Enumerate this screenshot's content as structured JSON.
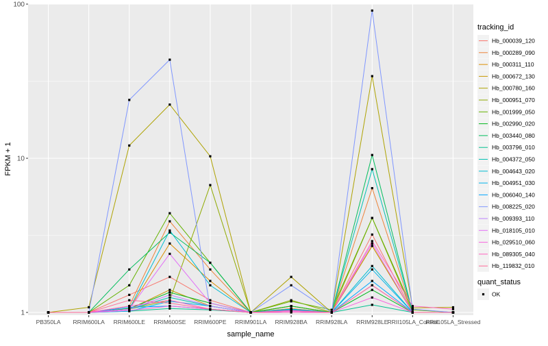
{
  "chart_data": {
    "type": "line",
    "title": "",
    "xlabel": "sample_name",
    "ylabel": "FPKM + 1",
    "y_scale": "log10",
    "ylim": [
      0.96,
      100
    ],
    "y_ticks": [
      {
        "value": 1,
        "label": "1"
      },
      {
        "value": 10,
        "label": "10"
      },
      {
        "value": 100,
        "label": "100"
      }
    ],
    "grid": true,
    "legend_position": "right",
    "categories": [
      "PB350LA",
      "RRIM600LA",
      "RRIM600LE",
      "RRIM600SE",
      "RRIM600PE",
      "RRIM901LA",
      "RRIM928BA",
      "RRIM928LA",
      "RRIM928LE",
      "RRII105LA_Control",
      "RRII105LA_Stressed"
    ],
    "color_legend": {
      "title": "tracking_id"
    },
    "shape_legend": {
      "title": "quant_status",
      "items": [
        {
          "label": "OK",
          "color": "#000000",
          "shape": "square"
        }
      ]
    },
    "series": [
      {
        "name": "Hb_000039_120",
        "color": "#F8766D",
        "values": [
          1.0,
          1.0,
          1.3,
          1.7,
          1.2,
          1.0,
          1.04,
          1.0,
          3.2,
          1.0,
          1.0
        ]
      },
      {
        "name": "Hb_000289_090",
        "color": "#EC8239",
        "values": [
          1.0,
          1.0,
          1.1,
          3.9,
          1.9,
          1.0,
          1.06,
          1.0,
          6.4,
          1.0,
          1.0
        ]
      },
      {
        "name": "Hb_000311_110",
        "color": "#DB8E00",
        "values": [
          1.0,
          1.0,
          1.05,
          2.8,
          1.6,
          1.0,
          1.1,
          1.0,
          2.7,
          1.0,
          1.0
        ]
      },
      {
        "name": "Hb_000672_130",
        "color": "#C79800",
        "values": [
          1.0,
          1.0,
          1.05,
          1.4,
          1.1,
          1.0,
          1.1,
          1.0,
          2.7,
          1.0,
          1.0
        ]
      },
      {
        "name": "Hb_000780_160",
        "color": "#AEA200",
        "values": [
          1.0,
          1.08,
          12.1,
          22.3,
          10.3,
          1.0,
          1.7,
          1.0,
          34.1,
          1.07,
          1.08
        ]
      },
      {
        "name": "Hb_000951_070",
        "color": "#8FAA00",
        "values": [
          1.0,
          1.0,
          1.05,
          1.2,
          6.7,
          1.0,
          1.2,
          1.0,
          4.1,
          1.0,
          1.0
        ]
      },
      {
        "name": "Hb_001999_050",
        "color": "#64B200",
        "values": [
          1.0,
          1.0,
          1.5,
          4.4,
          2.1,
          1.0,
          1.18,
          1.04,
          4.1,
          1.04,
          1.0
        ]
      },
      {
        "name": "Hb_002990_020",
        "color": "#00B81B",
        "values": [
          1.0,
          1.0,
          1.06,
          1.35,
          1.15,
          1.0,
          1.1,
          1.0,
          1.4,
          1.0,
          1.0
        ]
      },
      {
        "name": "Hb_003440_080",
        "color": "#00BD5C",
        "values": [
          1.0,
          1.0,
          1.9,
          3.3,
          2.1,
          1.0,
          1.05,
          1.0,
          10.5,
          1.0,
          1.0
        ]
      },
      {
        "name": "Hb_003796_010",
        "color": "#00C08E",
        "values": [
          1.0,
          1.0,
          1.02,
          1.06,
          1.04,
          1.0,
          1.02,
          1.0,
          1.12,
          1.0,
          1.0
        ]
      },
      {
        "name": "Hb_004372_050",
        "color": "#00C1B2",
        "values": [
          1.0,
          1.0,
          1.05,
          1.25,
          1.1,
          1.0,
          1.05,
          1.0,
          8.5,
          1.0,
          1.0
        ]
      },
      {
        "name": "Hb_004643_020",
        "color": "#00BCD1",
        "values": [
          1.0,
          1.0,
          1.05,
          3.4,
          1.5,
          1.0,
          1.05,
          1.0,
          2.0,
          1.0,
          1.0
        ]
      },
      {
        "name": "Hb_004951_030",
        "color": "#00B3EB",
        "values": [
          1.0,
          1.0,
          1.02,
          1.18,
          1.1,
          1.0,
          1.03,
          1.0,
          1.9,
          1.0,
          1.0
        ]
      },
      {
        "name": "Hb_006040_140",
        "color": "#00A5FF",
        "values": [
          1.0,
          1.0,
          1.08,
          1.1,
          1.05,
          1.0,
          1.04,
          1.0,
          1.6,
          1.0,
          1.0
        ]
      },
      {
        "name": "Hb_008225_020",
        "color": "#7F96FF",
        "values": [
          1.0,
          1.0,
          23.9,
          43.6,
          1.05,
          1.0,
          1.5,
          1.0,
          90.8,
          1.05,
          1.0
        ]
      },
      {
        "name": "Hb_009393_110",
        "color": "#BC81FF",
        "values": [
          1.0,
          1.0,
          1.05,
          1.3,
          1.1,
          1.0,
          1.02,
          1.0,
          1.5,
          1.0,
          1.0
        ]
      },
      {
        "name": "Hb_018105_010",
        "color": "#E26EF7",
        "values": [
          1.0,
          1.0,
          1.05,
          2.4,
          1.15,
          1.0,
          1.02,
          1.0,
          2.8,
          1.0,
          1.0
        ]
      },
      {
        "name": "Hb_029510_060",
        "color": "#F863DF",
        "values": [
          1.0,
          1.0,
          1.03,
          1.1,
          1.05,
          1.0,
          1.02,
          1.0,
          1.25,
          1.0,
          1.0
        ]
      },
      {
        "name": "Hb_089305_040",
        "color": "#FF62BF",
        "values": [
          1.0,
          1.0,
          1.1,
          1.2,
          1.05,
          1.0,
          1.0,
          1.0,
          2.9,
          1.1,
          1.05
        ]
      },
      {
        "name": "Hb_119832_010",
        "color": "#FF6A98",
        "values": [
          1.0,
          1.0,
          1.2,
          1.15,
          1.05,
          1.0,
          1.03,
          1.0,
          1.5,
          1.0,
          1.0
        ]
      }
    ]
  }
}
